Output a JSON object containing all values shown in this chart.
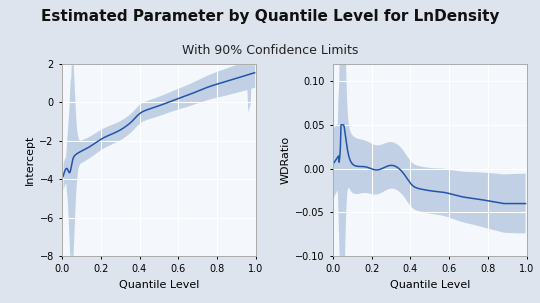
{
  "title": "Estimated Parameter by Quantile Level for LnDensity",
  "subtitle": "With 90% Confidence Limits",
  "title_fontsize": 11,
  "subtitle_fontsize": 9,
  "xlabel": "Quantile Level",
  "ylabel_left": "Intercept",
  "ylabel_right": "WDRatio",
  "left_ylim": [
    -8,
    2
  ],
  "right_ylim": [
    -0.1,
    0.12
  ],
  "left_yticks": [
    -8,
    -6,
    -4,
    -2,
    0,
    2
  ],
  "right_yticks": [
    -0.1,
    -0.05,
    0.0,
    0.05,
    0.1
  ],
  "xlim": [
    0.0,
    1.0
  ],
  "xticks": [
    0.0,
    0.2,
    0.4,
    0.6,
    0.8,
    1.0
  ],
  "line_color": "#2255aa",
  "fill_color": "#b0c4de",
  "bg_color": "#f4f7fb",
  "grid_color": "#ffffff",
  "border_color": "#aaaaaa",
  "fig_bg": "#dde4ee"
}
